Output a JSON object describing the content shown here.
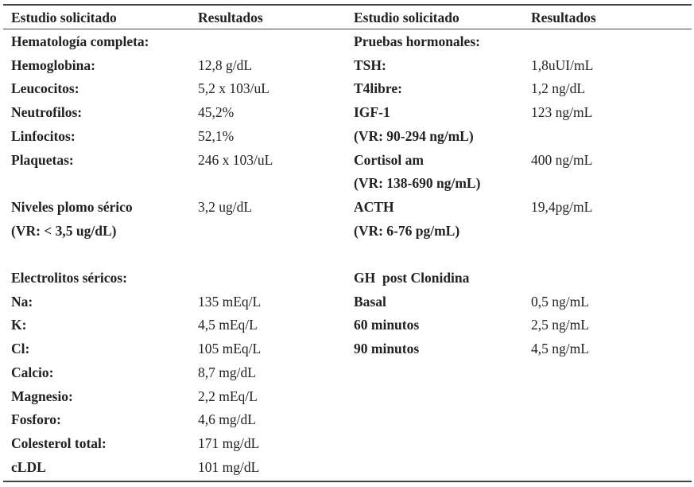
{
  "header": {
    "left": [
      "Estudio solicitado",
      "Resultados"
    ],
    "right": [
      "Estudio solicitado",
      "Resultados"
    ]
  },
  "left": [
    [
      {
        "label": "Hematología completa:"
      },
      {
        "label": "Hemoglobina:",
        "value": "12,8 g/dL"
      },
      {
        "label": "Leucocitos:",
        "value": "5,2 x 103/uL"
      },
      {
        "label": "Neutrofilos:",
        "value": "45,2%"
      },
      {
        "label": "Linfocitos:",
        "value": "52,1%"
      },
      {
        "label": "Plaquetas:",
        "value": "246 x 103/uL"
      }
    ],
    [
      {
        "label": "Niveles plomo sérico",
        "value": "3,2 ug/dL"
      },
      {
        "label": "(VR: < 3,5 ug/dL)"
      }
    ],
    [
      {
        "label": "Electrolitos séricos:"
      },
      {
        "label": "Na:",
        "value": "135 mEq/L"
      },
      {
        "label": "K:",
        "value": "4,5 mEq/L"
      },
      {
        "label": "Cl:",
        "value": "105 mEq/L"
      },
      {
        "label": "Calcio:",
        "value": "8,7 mg/dL"
      },
      {
        "label": "Magnesio:",
        "value": "2,2 mEq/L"
      },
      {
        "label": "Fosforo:",
        "value": "4,6 mg/dL"
      },
      {
        "label": "Colesterol total:",
        "value": "171 mg/dL"
      },
      {
        "label": "cLDL",
        "value": "101 mg/dL"
      }
    ]
  ],
  "right": [
    [
      {
        "label": "Pruebas hormonales:"
      },
      {
        "label": "TSH:",
        "value": "1,8uUI/mL"
      },
      {
        "label": "T4libre:",
        "value": "1,2 ng/dL"
      },
      {
        "label": "IGF-1",
        "value": "123 ng/mL"
      },
      {
        "label": "(VR: 90-294 ng/mL)"
      },
      {
        "label": "Cortisol am",
        "value": "400 ng/mL"
      },
      {
        "label": "(VR: 138-690 ng/mL)"
      },
      {
        "label": "ACTH",
        "value": "19,4pg/mL"
      },
      {
        "label": "(VR: 6-76 pg/mL)"
      }
    ],
    [
      {
        "label": "GH  post Clonidina"
      },
      {
        "label": "Basal",
        "value": "0,5 ng/mL"
      },
      {
        "label": "60 minutos",
        "value": "2,5 ng/mL"
      },
      {
        "label": "90 minutos",
        "value": "4,5 ng/mL"
      }
    ]
  ]
}
